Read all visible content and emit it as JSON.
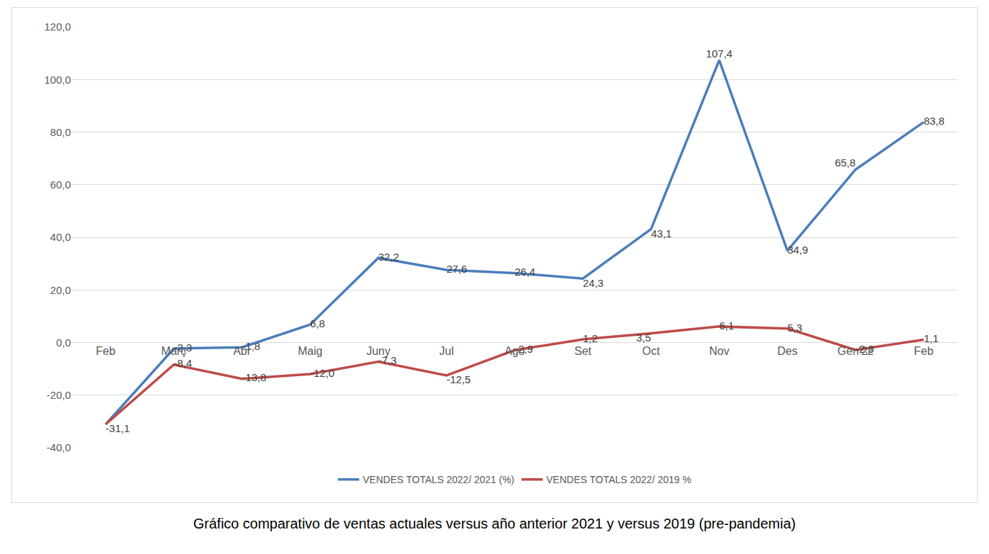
{
  "chart_data": {
    "type": "line",
    "title": "Gráfico comparativo de ventas actuales versus año anterior 2021 y versus 2019 (pre-pandemia)",
    "categories": [
      "Feb",
      "Març",
      "Abr",
      "Maig",
      "Juny",
      "Jul",
      "Ago",
      "Set",
      "Oct",
      "Nov",
      "Des",
      "Gen'22",
      "Feb"
    ],
    "series": [
      {
        "name": "VENDES TOTALS 2022/ 2021 (%)",
        "color": "#4a7ebb",
        "values": [
          -31.1,
          -2.3,
          -1.8,
          6.8,
          32.2,
          27.6,
          26.4,
          24.3,
          43.1,
          107.4,
          34.9,
          65.8,
          83.8
        ],
        "value_labels": [
          null,
          "-2,3",
          "-1,8",
          "6,8",
          "32,2",
          "27,6",
          "26,4",
          "24,3",
          "43,1",
          "107,4",
          "34,9",
          "65,8",
          "83,8"
        ]
      },
      {
        "name": "VENDES TOTALS 2022/ 2019 %",
        "color": "#be4b48",
        "values": [
          -31.1,
          -8.4,
          -13.8,
          -12.0,
          -7.3,
          -12.5,
          -2.9,
          1.2,
          3.5,
          6.1,
          5.3,
          -2.8,
          1.1
        ],
        "value_labels": [
          "-31,1",
          "-8,4",
          "-13,8",
          "-12,0",
          "-7,3",
          "-12,5",
          "-2,9",
          "1,2",
          "3,5",
          "6,1",
          "5,3",
          "-2,8",
          "1,1"
        ]
      }
    ],
    "ylim": [
      -40,
      120
    ],
    "yticks": [
      {
        "value": -40,
        "label": "-40,0"
      },
      {
        "value": -20,
        "label": "-20,0"
      },
      {
        "value": 0,
        "label": "0,0"
      },
      {
        "value": 20,
        "label": "20,0"
      },
      {
        "value": 40,
        "label": "40,0"
      },
      {
        "value": 60,
        "label": "60,0"
      },
      {
        "value": 80,
        "label": "80,0"
      },
      {
        "value": 100,
        "label": "100,0"
      },
      {
        "value": 120,
        "label": "120,0"
      }
    ],
    "grid": true,
    "legend": "bottom",
    "data_labels": true
  }
}
